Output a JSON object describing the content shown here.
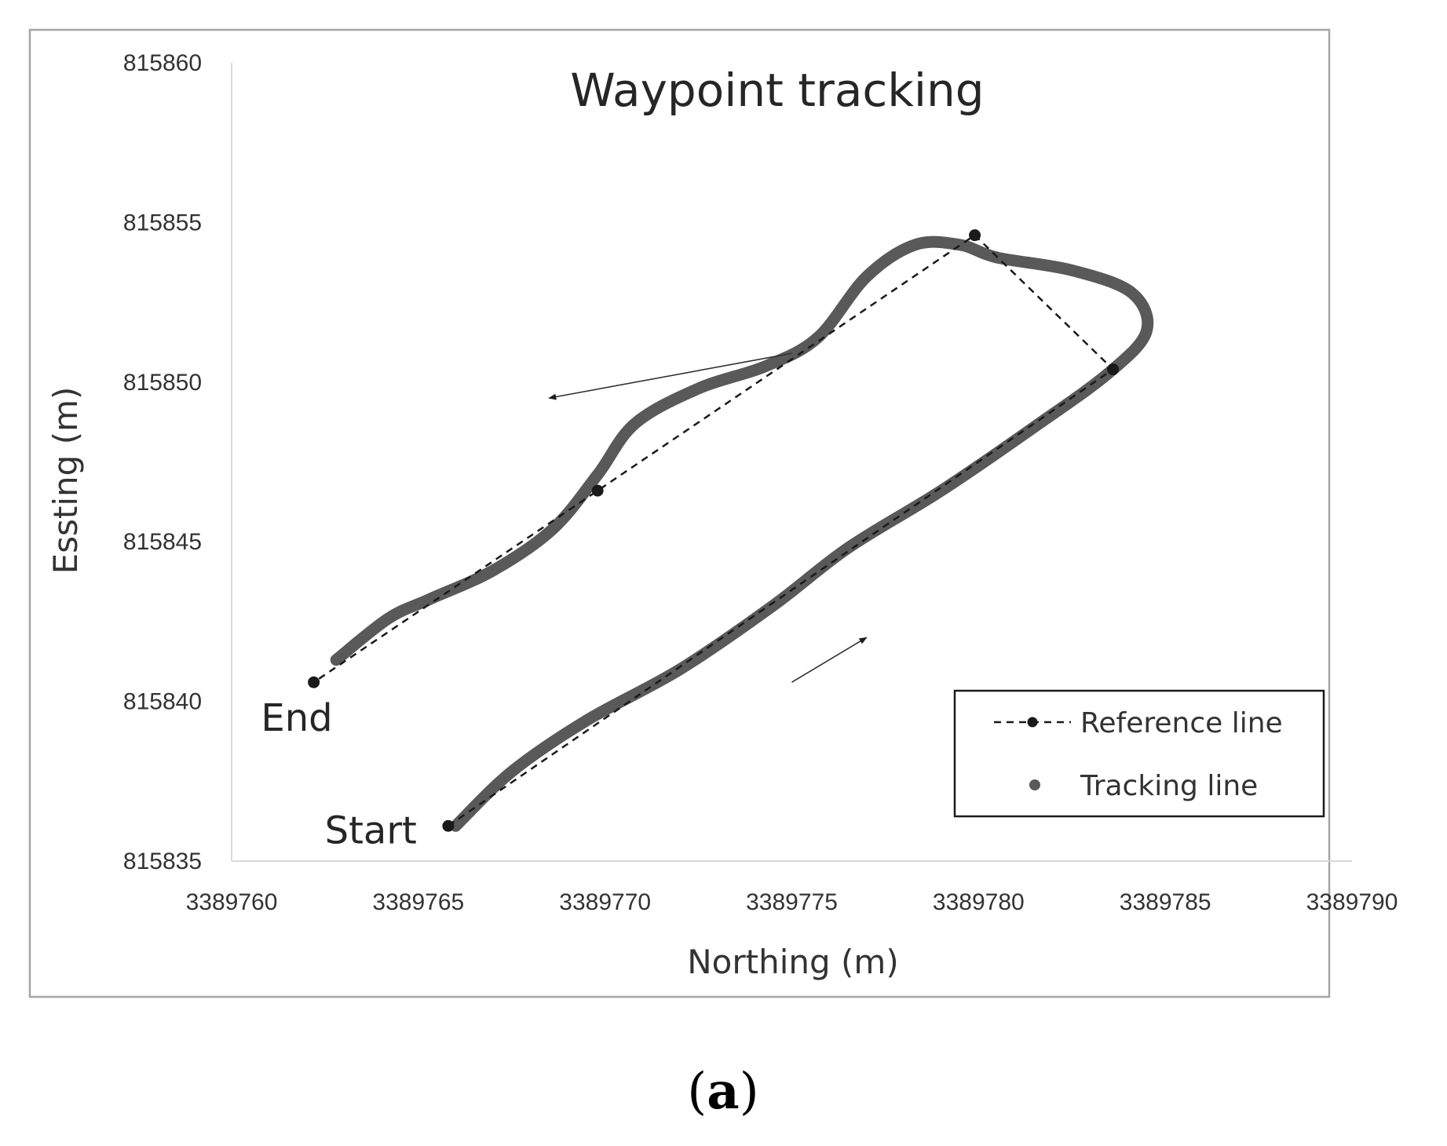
{
  "chart_data": {
    "type": "line",
    "title": "Waypoint tracking",
    "xlabel": "Northing (m)",
    "ylabel": "Essting (m)",
    "xlim": [
      3389760,
      3389790
    ],
    "ylim": [
      815835,
      815860
    ],
    "x_ticks": [
      3389760,
      3389765,
      3389770,
      3389775,
      3389780,
      3389785,
      3389790
    ],
    "y_ticks": [
      815835,
      815840,
      815845,
      815850,
      815855,
      815860
    ],
    "grid": false,
    "legend_position": "bottom-right",
    "series": [
      {
        "name": "Reference line",
        "style": "dashed-with-markers",
        "color": "#1a1a1a",
        "points": [
          {
            "x": 3389765.8,
            "y": 815836.1
          },
          {
            "x": 3389783.6,
            "y": 815850.4
          },
          {
            "x": 3389779.9,
            "y": 815854.6
          },
          {
            "x": 3389769.8,
            "y": 815846.6
          },
          {
            "x": 3389762.2,
            "y": 815840.6
          }
        ]
      },
      {
        "name": "Tracking line",
        "style": "thick-dots",
        "color": "#595959",
        "points": [
          {
            "x": 3389766.0,
            "y": 815836.1
          },
          {
            "x": 3389767.5,
            "y": 815837.8
          },
          {
            "x": 3389769.5,
            "y": 815839.4
          },
          {
            "x": 3389772.0,
            "y": 815841.0
          },
          {
            "x": 3389774.5,
            "y": 815843.0
          },
          {
            "x": 3389776.5,
            "y": 815844.8
          },
          {
            "x": 3389779.0,
            "y": 815846.6
          },
          {
            "x": 3389781.5,
            "y": 815848.6
          },
          {
            "x": 3389783.5,
            "y": 815850.3
          },
          {
            "x": 3389784.5,
            "y": 815851.6
          },
          {
            "x": 3389784.1,
            "y": 815852.8
          },
          {
            "x": 3389782.5,
            "y": 815853.5
          },
          {
            "x": 3389780.5,
            "y": 815853.9
          },
          {
            "x": 3389779.5,
            "y": 815854.3
          },
          {
            "x": 3389778.3,
            "y": 815854.3
          },
          {
            "x": 3389777.0,
            "y": 815853.3
          },
          {
            "x": 3389775.7,
            "y": 815851.4
          },
          {
            "x": 3389774.3,
            "y": 815850.5
          },
          {
            "x": 3389772.5,
            "y": 815849.8
          },
          {
            "x": 3389770.8,
            "y": 815848.7
          },
          {
            "x": 3389769.8,
            "y": 815847.1
          },
          {
            "x": 3389768.6,
            "y": 815845.4
          },
          {
            "x": 3389767.0,
            "y": 815844.1
          },
          {
            "x": 3389765.3,
            "y": 815843.2
          },
          {
            "x": 3389764.2,
            "y": 815842.6
          },
          {
            "x": 3389762.8,
            "y": 815841.3
          }
        ]
      }
    ],
    "annotations": [
      {
        "text": "End",
        "x": 3389762.2,
        "y": 815840.6,
        "marker": {
          "x": 3389762.2,
          "y": 815840.6
        }
      },
      {
        "text": "Start",
        "x": 3389765.8,
        "y": 815836.1,
        "marker": {
          "x": 3389765.8,
          "y": 815836.1
        }
      }
    ],
    "direction_arrows": [
      {
        "from": {
          "x": 3389775.0,
          "y": 815850.9
        },
        "to": {
          "x": 3389768.5,
          "y": 815849.5
        }
      },
      {
        "from": {
          "x": 3389775.0,
          "y": 815840.6
        },
        "to": {
          "x": 3389777.0,
          "y": 815842.0
        }
      }
    ]
  },
  "caption": "(a)",
  "caption_letter": "a"
}
